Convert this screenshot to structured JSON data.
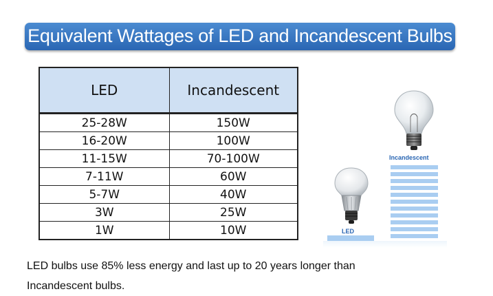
{
  "header": {
    "title": "Equivalent Wattages of LED and Incandescent Bulbs"
  },
  "table": {
    "columns": [
      "LED",
      "Incandescent"
    ],
    "rows": [
      [
        "25-28W",
        "150W"
      ],
      [
        "16-20W",
        "100W"
      ],
      [
        "11-15W",
        "70-100W"
      ],
      [
        "7-11W",
        "60W"
      ],
      [
        "5-7W",
        "40W"
      ],
      [
        "3W",
        "25W"
      ],
      [
        "1W",
        "10W"
      ]
    ]
  },
  "illustration": {
    "incandescent_label": "Incandescent",
    "led_label": "LED",
    "bar_color": "#a9cdf1",
    "label_color": "#2a66b3"
  },
  "footnote": "LED bulbs use 85% less energy and last up to 20 years longer than Incandescent bulbs.",
  "colors": {
    "banner": "#2a66b3",
    "table_header": "#cfe0f3"
  }
}
